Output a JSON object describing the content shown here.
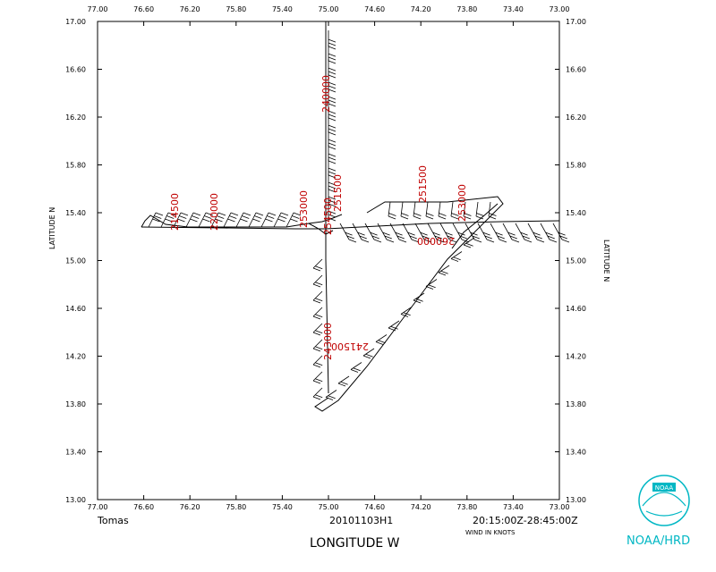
{
  "map": {
    "longitude_ticks": [
      "77.00",
      "76.60",
      "76.20",
      "75.80",
      "75.40",
      "75.00",
      "74.60",
      "74.20",
      "73.80",
      "73.40",
      "73.00"
    ],
    "latitude_ticks": [
      "17.00",
      "16.60",
      "16.20",
      "15.80",
      "15.40",
      "15.00",
      "14.60",
      "14.20",
      "13.80",
      "13.40",
      "13.00"
    ],
    "xlabel": "LONGITUDE   W",
    "ylabel": "LATITUDE   N",
    "storm_name": "Tomas",
    "flight_id": "20101103H1",
    "time_range": "20:15:00Z-28:45:00Z",
    "wind_units": "WIND IN KNOTS",
    "time_labels": [
      "214500",
      "220000",
      "253000",
      "251500",
      "240000",
      "251500",
      "253000",
      "260000",
      "243000",
      "241500",
      "254500"
    ]
  },
  "logo": {
    "text": "NOAA/HRD",
    "brand_color": "#00b7c4"
  }
}
